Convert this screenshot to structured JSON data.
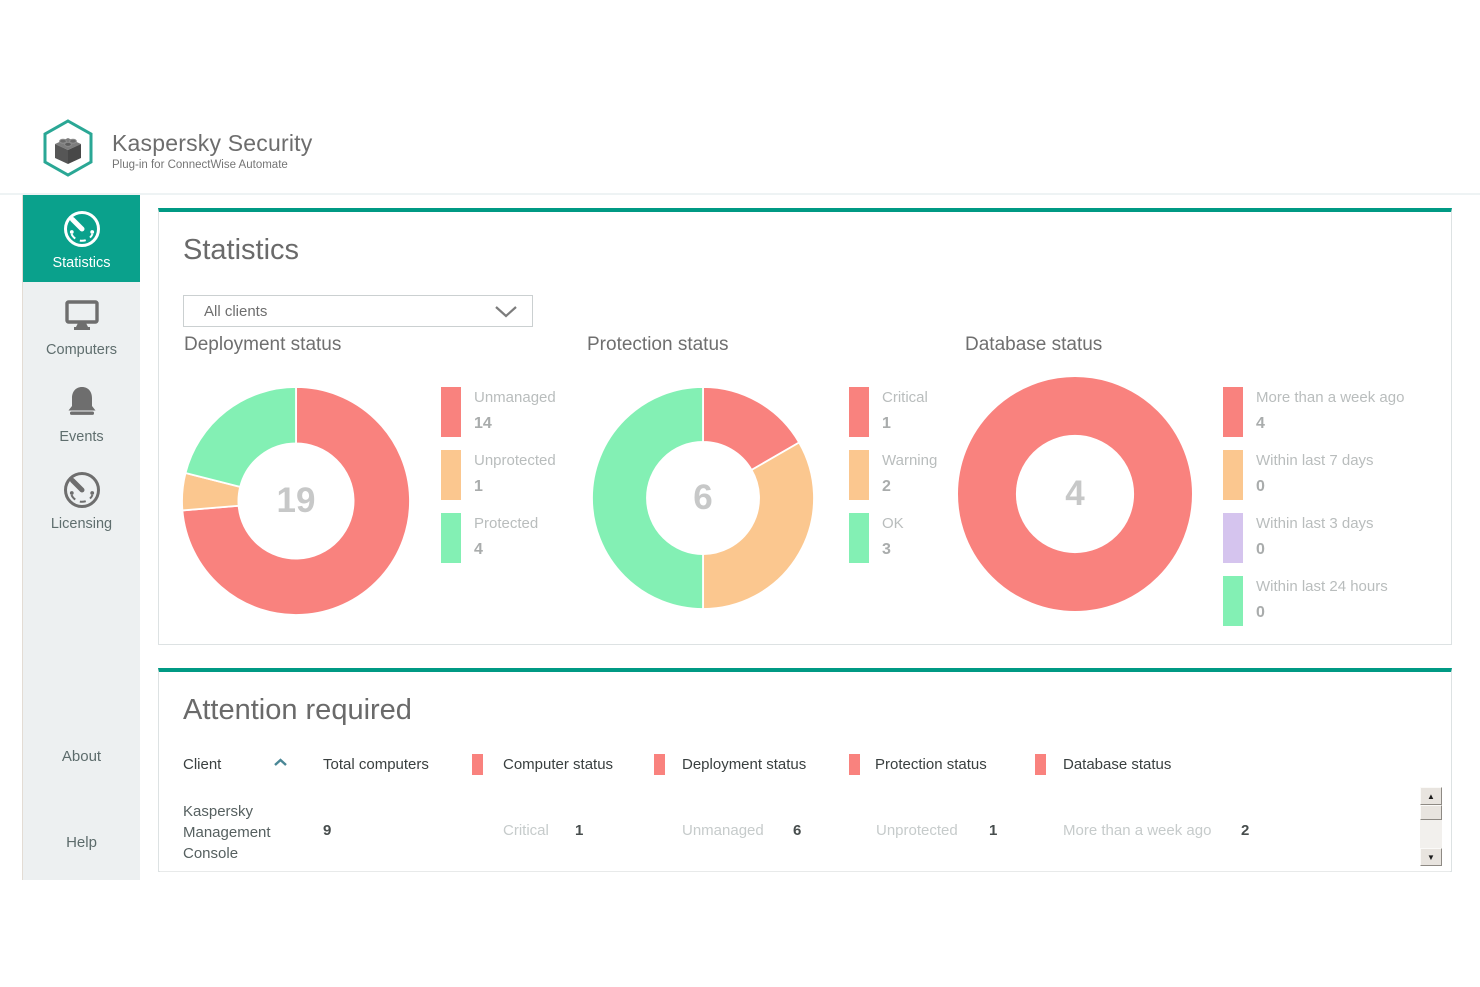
{
  "header": {
    "title": "Kaspersky Security",
    "subtitle": "Plug-in for ConnectWise Automate"
  },
  "sidebar": {
    "items": [
      {
        "label": "Statistics",
        "icon": "statistics-icon",
        "active": true
      },
      {
        "label": "Computers",
        "icon": "computers-icon",
        "active": false
      },
      {
        "label": "Events",
        "icon": "events-icon",
        "active": false
      },
      {
        "label": "Licensing",
        "icon": "licensing-icon",
        "active": false
      }
    ],
    "footer_items": [
      {
        "label": "About"
      },
      {
        "label": "Help"
      }
    ]
  },
  "statistics_panel": {
    "title": "Statistics",
    "client_filter": {
      "value": "All clients"
    }
  },
  "chart_data": [
    {
      "type": "pie",
      "style": "donut",
      "title": "Deployment status",
      "center_label": "19",
      "legend_position": "right",
      "segments": [
        {
          "label": "Unmanaged",
          "value": 14,
          "color": "#f9827e"
        },
        {
          "label": "Unprotected",
          "value": 1,
          "color": "#fbc78f"
        },
        {
          "label": "Protected",
          "value": 4,
          "color": "#83f0b4"
        }
      ]
    },
    {
      "type": "pie",
      "style": "donut",
      "title": "Protection status",
      "center_label": "6",
      "legend_position": "right",
      "segments": [
        {
          "label": "Critical",
          "value": 1,
          "color": "#f9827e"
        },
        {
          "label": "Warning",
          "value": 2,
          "color": "#fbc78f"
        },
        {
          "label": "OK",
          "value": 3,
          "color": "#83f0b4"
        }
      ]
    },
    {
      "type": "pie",
      "style": "donut",
      "title": "Database status",
      "center_label": "4",
      "legend_position": "right",
      "segments": [
        {
          "label": "More than a week ago",
          "value": 4,
          "color": "#f9827e"
        },
        {
          "label": "Within last 7 days",
          "value": 0,
          "color": "#fbc78f"
        },
        {
          "label": "Within last 3 days",
          "value": 0,
          "color": "#d5c4ee"
        },
        {
          "label": "Within last 24 hours",
          "value": 0,
          "color": "#83f0b4"
        }
      ]
    }
  ],
  "attention_panel": {
    "title": "Attention required",
    "marker_color": "#f9827e",
    "columns": [
      {
        "label": "Client"
      },
      {
        "label": "Total computers"
      },
      {
        "label": "Computer status"
      },
      {
        "label": "Deployment status"
      },
      {
        "label": "Protection status"
      },
      {
        "label": "Database status"
      }
    ],
    "rows": [
      {
        "client": "Kaspersky Management Console",
        "total": "9",
        "computer_status": {
          "label": "Critical",
          "value": "1"
        },
        "deployment_status": {
          "label": "Unmanaged",
          "value": "6"
        },
        "protection_status": {
          "label": "Unprotected",
          "value": "1"
        },
        "database_status": {
          "label": "More than a week ago",
          "value": "2"
        }
      }
    ]
  },
  "colors": {
    "accent_teal": "#0aa18c",
    "panel_border_teal": "#009a84",
    "status_red": "#f9827e",
    "status_orange": "#fbc78f",
    "status_green": "#83f0b4",
    "status_purple": "#d5c4ee"
  }
}
